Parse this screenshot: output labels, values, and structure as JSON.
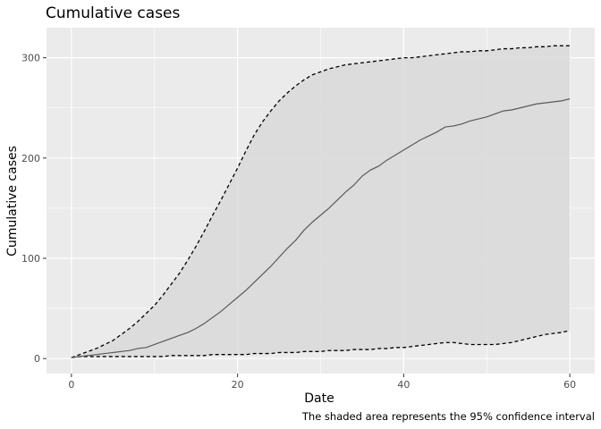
{
  "chart_data": {
    "type": "line",
    "title": "Cumulative cases",
    "xlabel": "Date",
    "ylabel": "Cumulative cases",
    "caption": "The shaded area represents the 95% confidence interval",
    "xlim": [
      -3,
      63
    ],
    "ylim": [
      -15,
      330
    ],
    "x_ticks": [
      0,
      20,
      40,
      60
    ],
    "y_ticks": [
      0,
      100,
      200,
      300
    ],
    "grid": true,
    "x": [
      0,
      1,
      2,
      3,
      4,
      5,
      6,
      7,
      8,
      9,
      10,
      11,
      12,
      13,
      14,
      15,
      16,
      17,
      18,
      19,
      20,
      21,
      22,
      23,
      24,
      25,
      26,
      27,
      28,
      29,
      30,
      31,
      32,
      33,
      34,
      35,
      36,
      37,
      38,
      39,
      40,
      41,
      42,
      43,
      44,
      45,
      46,
      47,
      48,
      49,
      50,
      51,
      52,
      53,
      54,
      55,
      56,
      57,
      58,
      59,
      60
    ],
    "series": [
      {
        "role": "estimate",
        "style": "solid",
        "values": [
          1,
          2,
          3,
          4,
          5,
          6,
          7,
          8,
          10,
          11,
          14,
          17,
          20,
          23,
          26,
          30,
          35,
          41,
          47,
          54,
          61,
          68,
          76,
          84,
          92,
          101,
          110,
          118,
          128,
          136,
          143,
          150,
          158,
          166,
          173,
          182,
          188,
          192,
          198,
          203,
          208,
          213,
          218,
          222,
          226,
          231,
          232,
          234,
          237,
          239,
          241,
          244,
          247,
          248,
          250,
          252,
          254,
          255,
          256,
          257,
          259
        ]
      },
      {
        "role": "upper",
        "style": "dashed",
        "values": [
          1,
          4,
          7,
          10,
          14,
          18,
          24,
          30,
          37,
          45,
          53,
          63,
          74,
          85,
          98,
          112,
          127,
          143,
          158,
          174,
          190,
          207,
          223,
          236,
          247,
          257,
          265,
          272,
          278,
          283,
          286,
          289,
          291,
          293,
          294,
          295,
          296,
          297,
          298,
          299,
          300,
          300,
          301,
          302,
          303,
          304,
          305,
          306,
          306,
          307,
          307,
          308,
          309,
          309,
          310,
          310,
          311,
          311,
          312,
          312,
          312
        ]
      },
      {
        "role": "lower",
        "style": "dashed",
        "values": [
          1,
          2,
          2,
          2,
          2,
          2,
          2,
          2,
          2,
          2,
          2,
          2,
          3,
          3,
          3,
          3,
          3,
          4,
          4,
          4,
          4,
          4,
          5,
          5,
          5,
          6,
          6,
          6,
          7,
          7,
          7,
          8,
          8,
          8,
          9,
          9,
          9,
          10,
          10,
          11,
          11,
          12,
          13,
          14,
          15,
          16,
          16,
          15,
          14,
          14,
          14,
          14,
          15,
          16,
          18,
          20,
          22,
          24,
          25,
          26,
          28
        ]
      }
    ],
    "band_fill": "#d9d9d9",
    "line_color": "#595959",
    "panel_background": "#ebebeb",
    "grid_color": "#ffffff"
  }
}
